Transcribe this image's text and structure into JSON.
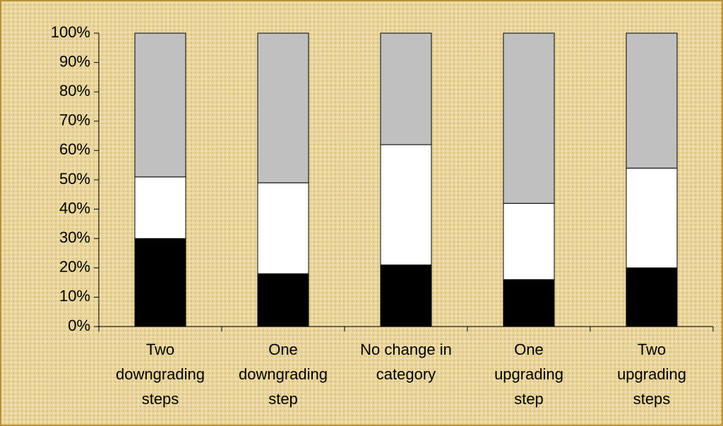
{
  "chart_data": {
    "type": "stacked_bar",
    "categories": [
      [
        "Two",
        "downgrading",
        "steps"
      ],
      [
        "One",
        "downgrading",
        "step"
      ],
      [
        "No change in",
        "category"
      ],
      [
        "One",
        "upgrading",
        "step"
      ],
      [
        "Two",
        "upgrading",
        "steps"
      ]
    ],
    "series": [
      {
        "color": "#000000",
        "values": [
          30,
          18,
          21,
          16,
          20
        ]
      },
      {
        "color": "#ffffff",
        "values": [
          21,
          31,
          41,
          26,
          34
        ]
      },
      {
        "color": "#c0c0c0",
        "values": [
          49,
          51,
          38,
          58,
          46
        ]
      }
    ],
    "ylim": [
      0,
      100
    ],
    "yticks": [
      {
        "value": 0,
        "label": "0%"
      },
      {
        "value": 10,
        "label": "10%"
      },
      {
        "value": 20,
        "label": "20%"
      },
      {
        "value": 30,
        "label": "30%"
      },
      {
        "value": 40,
        "label": "40%"
      },
      {
        "value": 50,
        "label": "50%"
      },
      {
        "value": 60,
        "label": "60%"
      },
      {
        "value": 70,
        "label": "70%"
      },
      {
        "value": 80,
        "label": "80%"
      },
      {
        "value": 90,
        "label": "90%"
      },
      {
        "value": 100,
        "label": "100%"
      }
    ]
  }
}
